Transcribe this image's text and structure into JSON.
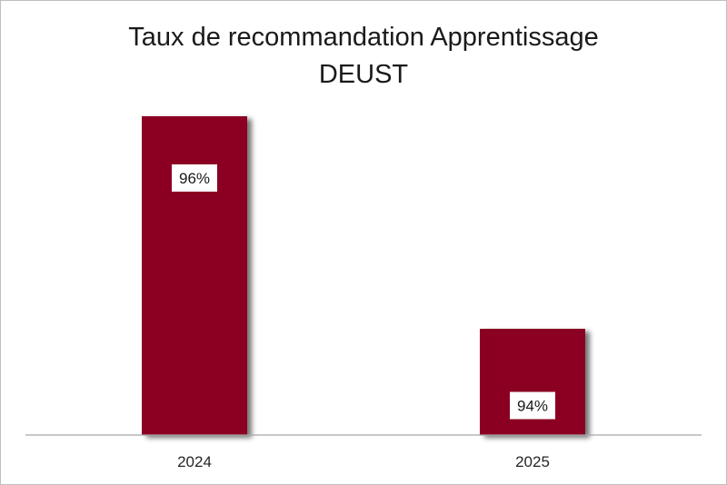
{
  "chart_data": {
    "type": "bar",
    "title_lines": [
      "Taux de recommandation Apprentissage",
      "DEUST"
    ],
    "categories": [
      "2024",
      "2025"
    ],
    "values": [
      96,
      94
    ],
    "data_labels": [
      "96%",
      "94%"
    ],
    "ylim": [
      93,
      96
    ],
    "grid": false,
    "legend": "none",
    "bar_color": "#8b0020",
    "label_box_color": "#ffffff"
  }
}
